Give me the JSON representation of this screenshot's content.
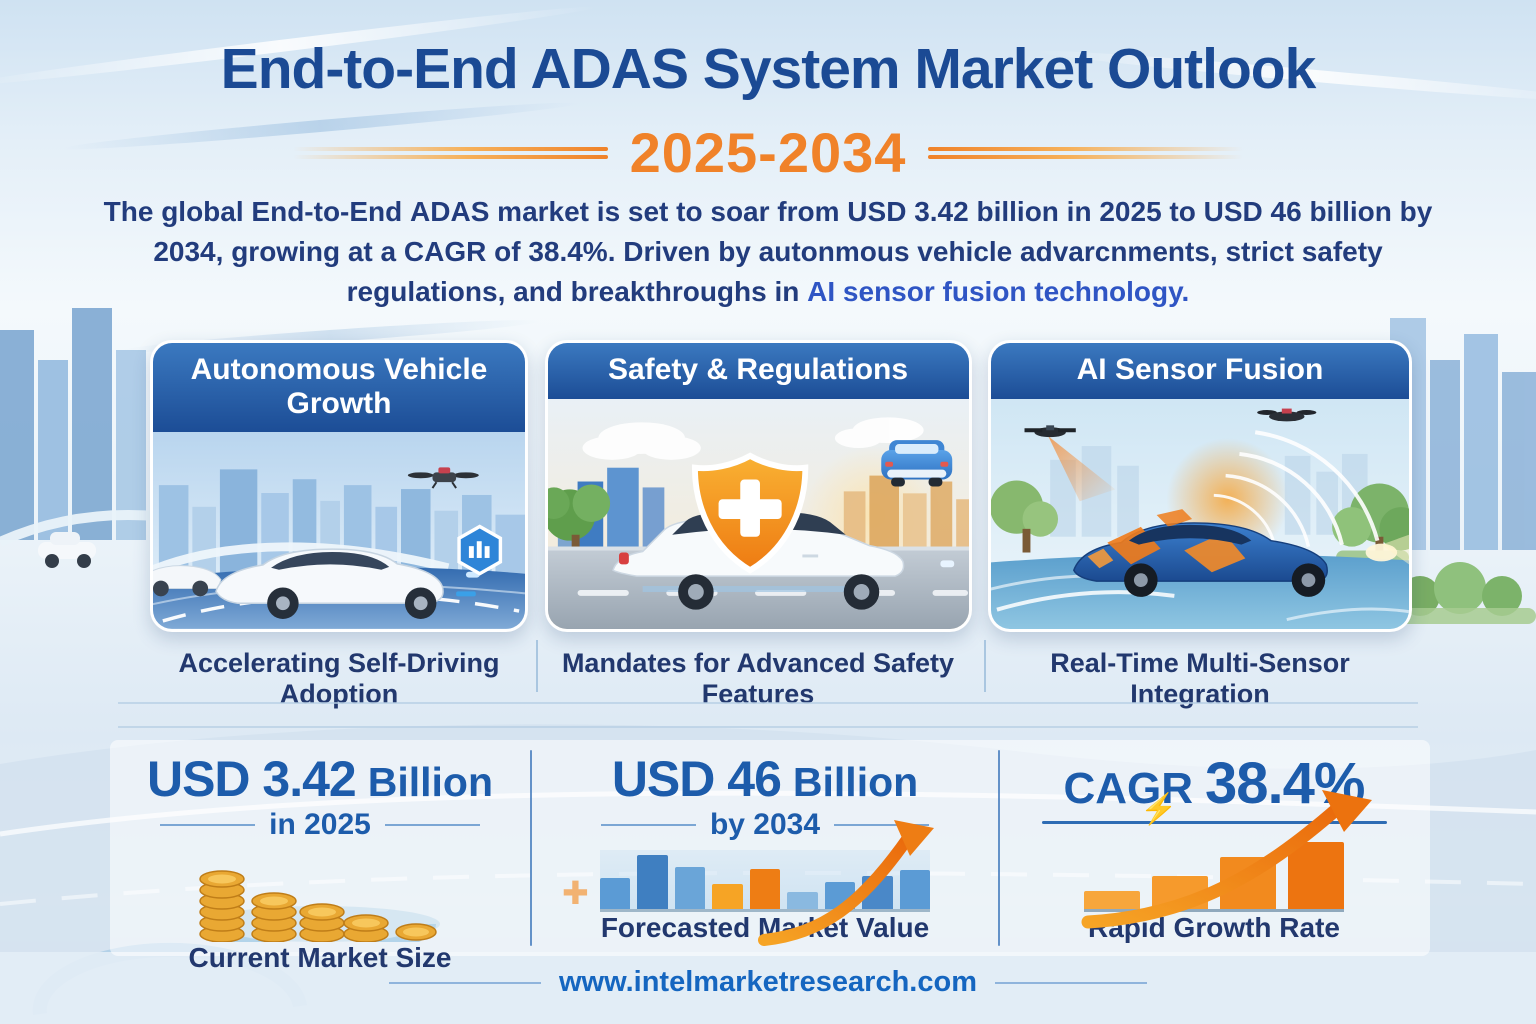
{
  "page": {
    "title": "End-to-End ADAS System Market Outlook",
    "years": "2025-2034"
  },
  "intro": {
    "segments": [
      {
        "t": "The global End-to-End "
      },
      {
        "t": "ADAS"
      },
      {
        "t": " market is set to soar from "
      },
      {
        "t": "USD 3.42 billion"
      },
      {
        "t": " in 2025 to "
      },
      {
        "t": "USD 46 billion"
      },
      {
        "t": " by "
      },
      {
        "t": "2034,"
      },
      {
        "t": " growing at a CAGR of "
      },
      {
        "t": "38.4%."
      },
      {
        "t": " Driven by autonmous vehicle advarcnments, strict safety regulations, and breakthroughs in "
      },
      {
        "t": "AI sensor fusion technology."
      }
    ]
  },
  "cards": [
    {
      "title": "Autonomous Vehicle Growth",
      "caption": "Accelerating Self-Driving Adoption"
    },
    {
      "title": "Safety & Regulations",
      "caption": "Mandates for Advanced Safety Features"
    },
    {
      "title": "AI Sensor Fusion",
      "caption": "Real-Time Multi-Sensor Integration"
    }
  ],
  "stats": {
    "current": {
      "big": "USD 3.42",
      "small": "Billion",
      "period": "in 2025",
      "caption": "Current Market Size"
    },
    "forecast": {
      "big": "USD 46",
      "small": "Billion",
      "period": "by 2034",
      "caption": "Forecasted Market Value"
    },
    "cagr": {
      "label": "CAGR",
      "big": "38.4%",
      "caption": "Rapid Growth Rate"
    }
  },
  "charts": {
    "forecast_bars": {
      "type": "bar",
      "values": [
        52,
        92,
        72,
        42,
        68,
        28,
        46,
        56,
        66
      ],
      "colors": [
        "#5b9bd5",
        "#3f7fc1",
        "#6aa5d8",
        "#f6a425",
        "#ee7d14",
        "#8ab9e0",
        "#5b9bd5",
        "#4a88c8",
        "#5b9bd5"
      ]
    },
    "growth_bars": {
      "type": "bar",
      "values": [
        22,
        40,
        64,
        82
      ],
      "colors": [
        "#f7a63c",
        "#f69a2c",
        "#f28a1e",
        "#ed7410"
      ]
    }
  },
  "icons": {
    "lightning": "⚡",
    "plus": "✚"
  },
  "colors": {
    "title_navy": "#1b4a94",
    "paragraph_navy": "#223c7d",
    "accent_blue": "#2f55c4",
    "orange": "#f08229",
    "stat_blue": "#1d5cab",
    "caption_navy": "#22386e",
    "link_blue": "#1566c0",
    "divider_blue": "#4b80bf",
    "card_header_top": "#3b79c0",
    "card_header_bottom": "#1c4d96"
  },
  "footer": {
    "url": "www.intelmarketresearch.com"
  }
}
